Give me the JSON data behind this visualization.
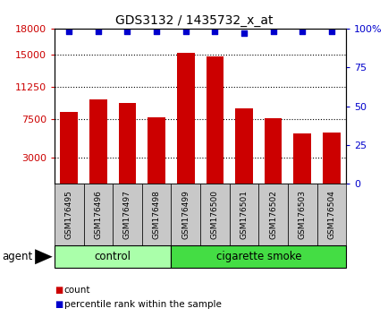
{
  "title": "GDS3132 / 1435732_x_at",
  "samples": [
    "GSM176495",
    "GSM176496",
    "GSM176497",
    "GSM176498",
    "GSM176499",
    "GSM176500",
    "GSM176501",
    "GSM176502",
    "GSM176503",
    "GSM176504"
  ],
  "counts": [
    8300,
    9800,
    9400,
    7700,
    15200,
    14800,
    8700,
    7600,
    5800,
    5900
  ],
  "percentile_ranks_pct": [
    98,
    98,
    98,
    98,
    98,
    98,
    97,
    98,
    98,
    98
  ],
  "ylim_left": [
    0,
    18000
  ],
  "ylim_right": [
    0,
    100
  ],
  "yticks_left": [
    3000,
    7500,
    11250,
    15000,
    18000
  ],
  "yticks_right": [
    0,
    25,
    50,
    75,
    100
  ],
  "groups": [
    {
      "label": "control",
      "start": 0,
      "end": 4,
      "color": "#AAFFAA"
    },
    {
      "label": "cigarette smoke",
      "start": 4,
      "end": 10,
      "color": "#44DD44"
    }
  ],
  "bar_color": "#CC0000",
  "dot_color": "#0000CC",
  "left_tick_color": "#CC0000",
  "right_tick_color": "#0000CC",
  "legend_count_color": "#CC0000",
  "legend_percentile_color": "#0000CC",
  "bar_width": 0.6,
  "tick_label_area_color": "#C8C8C8",
  "agent_label": "agent",
  "legend_count_text": "count",
  "legend_pct_text": "percentile rank within the sample"
}
